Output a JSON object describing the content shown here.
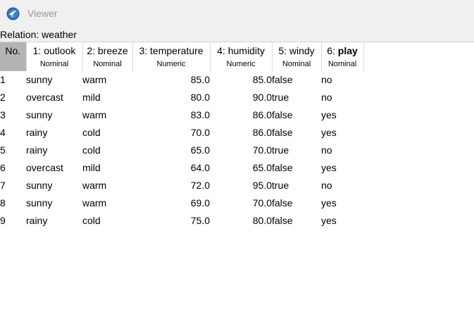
{
  "window": {
    "title": "Viewer",
    "app_icon": "weka-bird-icon"
  },
  "relation": {
    "label": "Relation: weather"
  },
  "table": {
    "no_header": "No.",
    "columns": [
      {
        "name": "1: outlook",
        "type": "Nominal",
        "align": "left"
      },
      {
        "name": "2: breeze",
        "type": "Nominal",
        "align": "left"
      },
      {
        "name": "3: temperature",
        "type": "Numeric",
        "align": "right"
      },
      {
        "name": "4: humidity",
        "type": "Numeric",
        "align": "right"
      },
      {
        "name": "5: windy",
        "type": "Nominal",
        "align": "left"
      },
      {
        "name_prefix": "6: ",
        "name_bold": "play",
        "type": "Nominal",
        "align": "left"
      }
    ],
    "rows": [
      {
        "no": "1",
        "cells": [
          "sunny",
          "warm",
          "85.0",
          "85.0",
          "false",
          "no"
        ]
      },
      {
        "no": "2",
        "cells": [
          "overcast",
          "mild",
          "80.0",
          "90.0",
          "true",
          "no"
        ]
      },
      {
        "no": "3",
        "cells": [
          "sunny",
          "warm",
          "83.0",
          "86.0",
          "false",
          "yes"
        ]
      },
      {
        "no": "4",
        "cells": [
          "rainy",
          "cold",
          "70.0",
          "86.0",
          "false",
          "yes"
        ]
      },
      {
        "no": "5",
        "cells": [
          "rainy",
          "cold",
          "65.0",
          "70.0",
          "true",
          "no"
        ]
      },
      {
        "no": "6",
        "cells": [
          "overcast",
          "mild",
          "64.0",
          "65.0",
          "false",
          "yes"
        ]
      },
      {
        "no": "7",
        "cells": [
          "sunny",
          "warm",
          "72.0",
          "95.0",
          "true",
          "no"
        ]
      },
      {
        "no": "8",
        "cells": [
          "sunny",
          "warm",
          "69.0",
          "70.0",
          "false",
          "yes"
        ]
      },
      {
        "no": "9",
        "cells": [
          "rainy",
          "cold",
          "75.0",
          "80.0",
          "false",
          "yes"
        ]
      }
    ]
  }
}
